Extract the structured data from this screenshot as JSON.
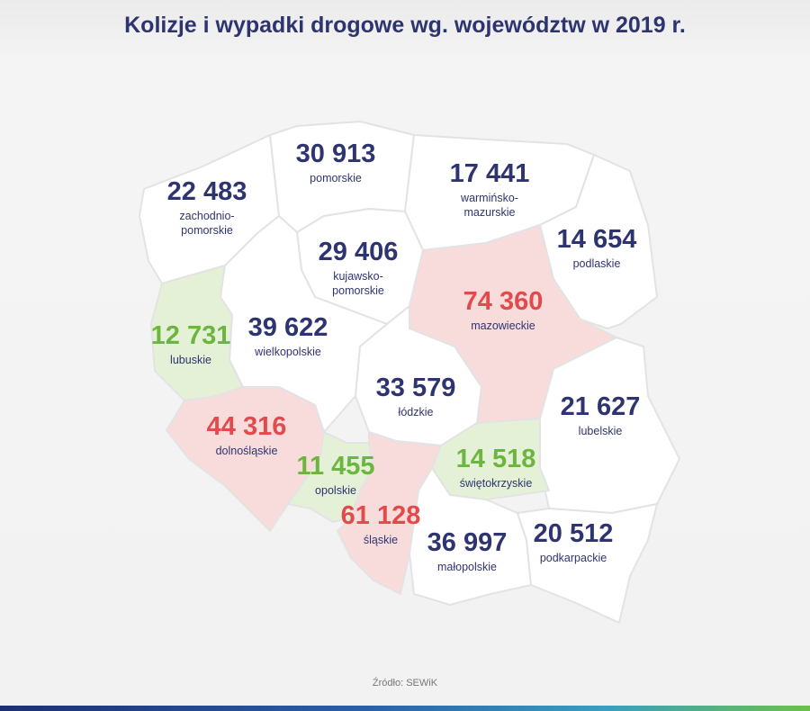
{
  "title": "Kolizje i wypadki drogowe wg. województw w 2019 r.",
  "source": "Źródło: SEWiK",
  "colors": {
    "high": "#e24a4b",
    "mid": "#2e3470",
    "low": "#6cb63f",
    "fill_high": "#f8dcdc",
    "fill_mid": "#ffffff",
    "fill_low": "#e4f1d6"
  },
  "regions": [
    {
      "id": "zachodniopomorskie",
      "value": "22 483",
      "name_lines": [
        "zachodnio-",
        "pomorskie"
      ],
      "category": "mid"
    },
    {
      "id": "pomorskie",
      "value": "30 913",
      "name_lines": [
        "pomorskie"
      ],
      "category": "mid"
    },
    {
      "id": "warminsko-mazurskie",
      "value": "17 441",
      "name_lines": [
        "warmińsko-",
        "mazurskie"
      ],
      "category": "mid"
    },
    {
      "id": "podlaskie",
      "value": "14 654",
      "name_lines": [
        "podlaskie"
      ],
      "category": "mid"
    },
    {
      "id": "kujawsko-pomorskie",
      "value": "29 406",
      "name_lines": [
        "kujawsko-",
        "pomorskie"
      ],
      "category": "mid"
    },
    {
      "id": "mazowieckie",
      "value": "74 360",
      "name_lines": [
        "mazowieckie"
      ],
      "category": "high"
    },
    {
      "id": "lubuskie",
      "value": "12 731",
      "name_lines": [
        "lubuskie"
      ],
      "category": "low"
    },
    {
      "id": "wielkopolskie",
      "value": "39 622",
      "name_lines": [
        "wielkopolskie"
      ],
      "category": "mid"
    },
    {
      "id": "lodzkie",
      "value": "33 579",
      "name_lines": [
        "łódzkie"
      ],
      "category": "mid"
    },
    {
      "id": "lubelskie",
      "value": "21 627",
      "name_lines": [
        "lubelskie"
      ],
      "category": "mid"
    },
    {
      "id": "dolnoslaskie",
      "value": "44 316",
      "name_lines": [
        "dolnośląskie"
      ],
      "category": "high"
    },
    {
      "id": "opolskie",
      "value": "11 455",
      "name_lines": [
        "opolskie"
      ],
      "category": "low"
    },
    {
      "id": "swietokrzyskie",
      "value": "14 518",
      "name_lines": [
        "świętokrzyskie"
      ],
      "category": "low"
    },
    {
      "id": "slaskie",
      "value": "61 128",
      "name_lines": [
        "śląskie"
      ],
      "category": "high"
    },
    {
      "id": "malopolskie",
      "value": "36 997",
      "name_lines": [
        "małopolskie"
      ],
      "category": "mid"
    },
    {
      "id": "podkarpackie",
      "value": "20 512",
      "name_lines": [
        "podkarpackie"
      ],
      "category": "mid"
    }
  ]
}
